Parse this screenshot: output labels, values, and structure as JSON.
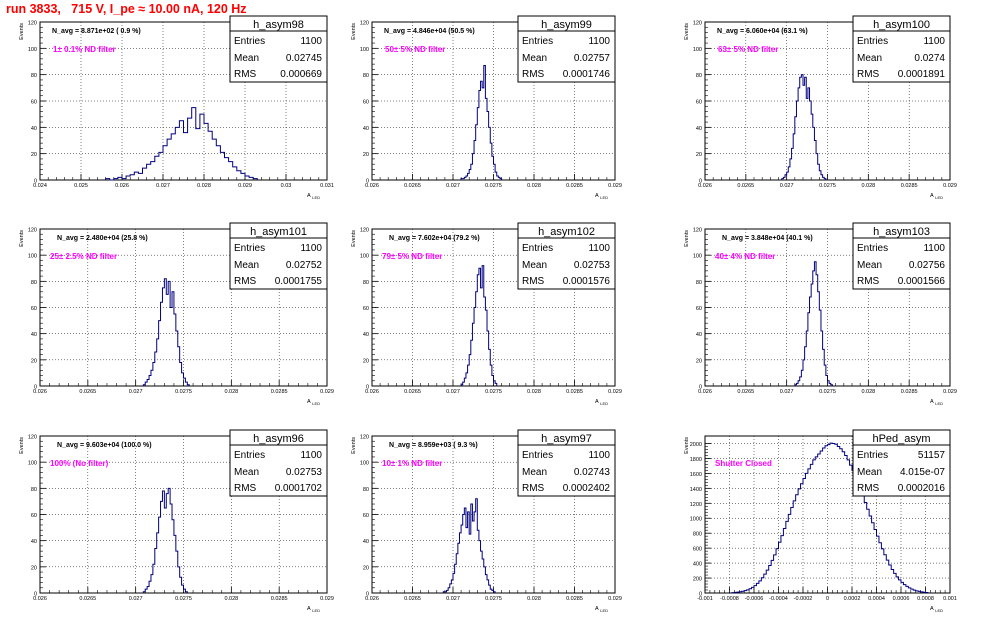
{
  "page_title": "run 3833,   715 V, I_pe ≈ 10.00 nA, 120 Hz",
  "axis_labels": {
    "y": "Events",
    "x_main": "A",
    "x_sub": "LED"
  },
  "stats_labels": {
    "entries": "Entries",
    "mean": "Mean",
    "rms": "RMS"
  },
  "colors": {
    "histogram": "#00007f",
    "filter_text": "#ff00ff",
    "title_text": "#ff0000",
    "grid": "#000000"
  },
  "chart_data": [
    {
      "type": "histogram",
      "name": "h_asym98",
      "n_avg": "N_avg = 8.871e+02 ( 0.9 %)",
      "filter_label": "1± 0.1% ND filter",
      "stats": {
        "entries": "1100",
        "mean": "0.02745",
        "rms": "0.000669"
      },
      "xlim": [
        0.024,
        0.031
      ],
      "ylim": [
        0,
        120
      ],
      "xticks": [
        "0.024",
        "0.025",
        "0.026",
        "0.027",
        "0.028",
        "0.029",
        "0.03",
        "0.031"
      ],
      "yticks": [
        "0",
        "20",
        "40",
        "60",
        "80",
        "100",
        "120"
      ],
      "bin_start": 0.0256,
      "bin_width": 0.0001,
      "values": [
        1,
        0,
        1,
        2,
        1,
        3,
        4,
        6,
        5,
        9,
        12,
        14,
        18,
        21,
        26,
        31,
        35,
        40,
        45,
        36,
        47,
        55,
        39,
        50,
        43,
        37,
        31,
        26,
        21,
        17,
        14,
        10,
        7,
        5,
        3,
        2,
        1
      ]
    },
    {
      "type": "histogram",
      "name": "h_asym99",
      "n_avg": "N_avg = 4.846e+04 (50.5 %)",
      "filter_label": "50± 5% ND filter",
      "stats": {
        "entries": "1100",
        "mean": "0.02757",
        "rms": "0.0001746"
      },
      "xlim": [
        0.026,
        0.029
      ],
      "ylim": [
        0,
        120
      ],
      "xticks": [
        "0.026",
        "0.0265",
        "0.027",
        "0.0275",
        "0.028",
        "0.0285",
        "0.029"
      ],
      "yticks": [
        "0",
        "20",
        "40",
        "60",
        "80",
        "100",
        "120"
      ],
      "bin_start": 0.0271,
      "bin_width": 2e-05,
      "values": [
        1,
        1,
        2,
        3,
        5,
        8,
        12,
        20,
        30,
        42,
        55,
        68,
        75,
        70,
        87,
        62,
        52,
        40,
        28,
        18,
        12,
        6,
        3,
        2,
        1
      ]
    },
    {
      "type": "histogram",
      "name": "h_asym100",
      "n_avg": "N_avg = 6.060e+04 (63.1 %)",
      "filter_label": "63± 5% ND filter",
      "stats": {
        "entries": "1100",
        "mean": "0.0274",
        "rms": "0.0001891"
      },
      "xlim": [
        0.026,
        0.029
      ],
      "ylim": [
        0,
        120
      ],
      "xticks": [
        "0.026",
        "0.0265",
        "0.027",
        "0.0275",
        "0.028",
        "0.0285",
        "0.029"
      ],
      "yticks": [
        "0",
        "20",
        "40",
        "60",
        "80",
        "100",
        "120"
      ],
      "bin_start": 0.02694,
      "bin_width": 2e-05,
      "values": [
        1,
        2,
        4,
        6,
        10,
        16,
        24,
        35,
        48,
        60,
        70,
        78,
        80,
        72,
        78,
        62,
        70,
        60,
        50,
        40,
        30,
        20,
        12,
        7,
        4,
        2,
        1
      ]
    },
    {
      "type": "histogram",
      "name": "h_asym101",
      "n_avg": "N_avg = 2.480e+04 (25.8 %)",
      "filter_label": "25± 2.5% ND filter",
      "stats": {
        "entries": "1100",
        "mean": "0.02752",
        "rms": "0.0001755"
      },
      "xlim": [
        0.026,
        0.029
      ],
      "ylim": [
        0,
        120
      ],
      "xticks": [
        "0.026",
        "0.0265",
        "0.027",
        "0.0275",
        "0.028",
        "0.0285",
        "0.029"
      ],
      "yticks": [
        "0",
        "20",
        "40",
        "60",
        "80",
        "100",
        "120"
      ],
      "bin_start": 0.02708,
      "bin_width": 2e-05,
      "values": [
        1,
        3,
        5,
        8,
        12,
        18,
        26,
        36,
        50,
        64,
        75,
        82,
        70,
        80,
        60,
        72,
        55,
        42,
        30,
        18,
        10,
        6,
        3,
        1
      ]
    },
    {
      "type": "histogram",
      "name": "h_asym102",
      "n_avg": "N_avg = 7.602e+04 (79.2 %)",
      "filter_label": "79± 5% ND filter",
      "stats": {
        "entries": "1100",
        "mean": "0.02753",
        "rms": "0.0001576"
      },
      "xlim": [
        0.026,
        0.029
      ],
      "ylim": [
        0,
        120
      ],
      "xticks": [
        "0.026",
        "0.0265",
        "0.027",
        "0.0275",
        "0.028",
        "0.0285",
        "0.029"
      ],
      "yticks": [
        "0",
        "20",
        "40",
        "60",
        "80",
        "100",
        "120"
      ],
      "bin_start": 0.0271,
      "bin_width": 2e-05,
      "values": [
        1,
        3,
        6,
        10,
        16,
        24,
        35,
        48,
        60,
        72,
        85,
        90,
        75,
        92,
        68,
        58,
        42,
        28,
        16,
        8,
        4,
        2
      ]
    },
    {
      "type": "histogram",
      "name": "h_asym103",
      "n_avg": "N_avg = 3.848e+04 (40.1 %)",
      "filter_label": "40± 4% ND filter",
      "stats": {
        "entries": "1100",
        "mean": "0.02756",
        "rms": "0.0001566"
      },
      "xlim": [
        0.026,
        0.029
      ],
      "ylim": [
        0,
        120
      ],
      "xticks": [
        "0.026",
        "0.0265",
        "0.027",
        "0.0275",
        "0.028",
        "0.0285",
        "0.029"
      ],
      "yticks": [
        "0",
        "20",
        "40",
        "60",
        "80",
        "100",
        "120"
      ],
      "bin_start": 0.0271,
      "bin_width": 2e-05,
      "values": [
        1,
        2,
        4,
        7,
        12,
        20,
        30,
        42,
        56,
        68,
        78,
        88,
        95,
        85,
        72,
        58,
        42,
        28,
        16,
        8,
        4,
        2,
        1
      ]
    },
    {
      "type": "histogram",
      "name": "h_asym96",
      "n_avg": "N_avg = 9.603e+04 (100.0 %)",
      "filter_label": "100% (No filter)",
      "stats": {
        "entries": "1100",
        "mean": "0.02753",
        "rms": "0.0001702"
      },
      "xlim": [
        0.026,
        0.029
      ],
      "ylim": [
        0,
        120
      ],
      "xticks": [
        "0.026",
        "0.0265",
        "0.027",
        "0.0275",
        "0.028",
        "0.0285",
        "0.029"
      ],
      "yticks": [
        "0",
        "20",
        "40",
        "60",
        "80",
        "100",
        "120"
      ],
      "bin_start": 0.02708,
      "bin_width": 2e-05,
      "values": [
        1,
        3,
        5,
        9,
        14,
        22,
        34,
        46,
        58,
        70,
        78,
        65,
        76,
        80,
        68,
        56,
        44,
        32,
        20,
        12,
        6,
        3,
        1
      ]
    },
    {
      "type": "histogram",
      "name": "h_asym97",
      "n_avg": "N_avg = 8.959e+03 ( 9.3 %)",
      "filter_label": "10± 1% ND filter",
      "stats": {
        "entries": "1100",
        "mean": "0.02743",
        "rms": "0.0002402"
      },
      "xlim": [
        0.026,
        0.029
      ],
      "ylim": [
        0,
        120
      ],
      "xticks": [
        "0.026",
        "0.0265",
        "0.027",
        "0.0275",
        "0.028",
        "0.0285",
        "0.029"
      ],
      "yticks": [
        "0",
        "20",
        "40",
        "60",
        "80",
        "100",
        "120"
      ],
      "bin_start": 0.02688,
      "bin_width": 2e-05,
      "values": [
        1,
        1,
        2,
        4,
        7,
        10,
        15,
        22,
        30,
        38,
        46,
        52,
        60,
        65,
        50,
        62,
        45,
        68,
        55,
        62,
        72,
        48,
        40,
        32,
        26,
        20,
        14,
        10,
        6,
        3,
        2,
        1
      ]
    },
    {
      "type": "histogram",
      "name": "hPed_asym",
      "n_avg": "",
      "filter_label": "Shutter Closed",
      "stats": {
        "entries": "51157",
        "mean": "4.015e-07",
        "rms": "0.0002016"
      },
      "xlim": [
        -0.001,
        0.001
      ],
      "ylim": [
        0,
        2100
      ],
      "xticks": [
        "-0.001",
        "-0.0008",
        "-0.0006",
        "-0.0004",
        "-0.0002",
        "0",
        "0.0002",
        "0.0004",
        "0.0006",
        "0.0008",
        "0.001"
      ],
      "yticks": [
        "0",
        "200",
        "400",
        "600",
        "800",
        "1000",
        "1200",
        "1400",
        "1600",
        "1800",
        "2000"
      ],
      "bin_start": -0.00078,
      "bin_width": 2e-05,
      "values": [
        5,
        8,
        12,
        17,
        23,
        31,
        42,
        56,
        75,
        98,
        128,
        162,
        204,
        252,
        306,
        368,
        436,
        510,
        592,
        678,
        768,
        862,
        958,
        1052,
        1144,
        1232,
        1314,
        1392,
        1462,
        1532,
        1600,
        1660,
        1720,
        1780,
        1820,
        1860,
        1900,
        1940,
        1970,
        1985,
        2005,
        2000,
        1990,
        1960,
        1930,
        1890,
        1840,
        1780,
        1710,
        1640,
        1560,
        1480,
        1390,
        1300,
        1210,
        1120,
        1030,
        940,
        850,
        760,
        672,
        590,
        512,
        440,
        374,
        314,
        262,
        216,
        176,
        142,
        112,
        88,
        68,
        52,
        39,
        29,
        21,
        15,
        10,
        7
      ]
    }
  ]
}
